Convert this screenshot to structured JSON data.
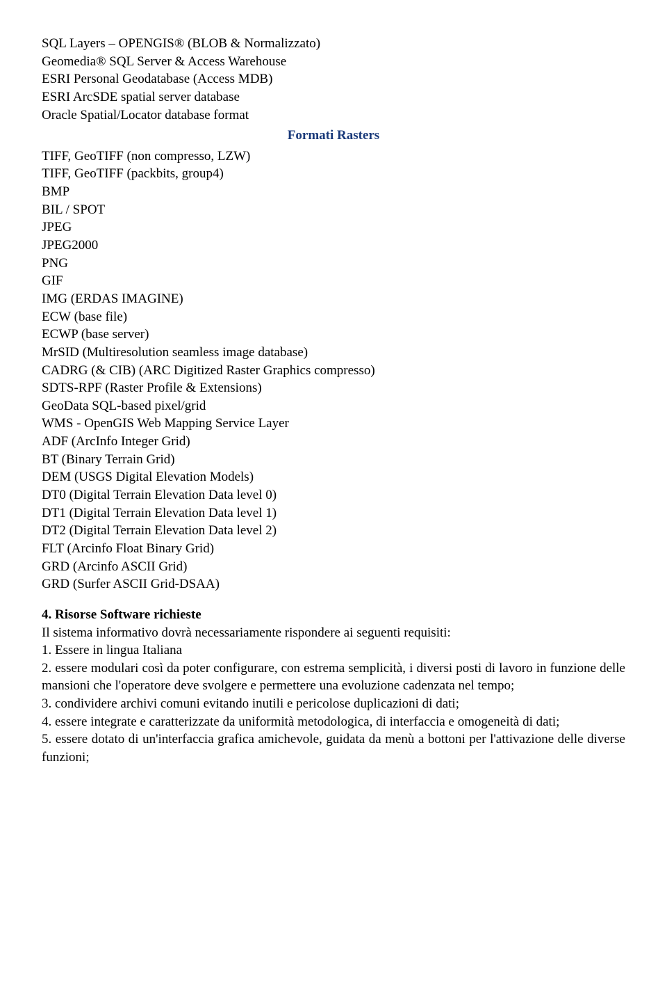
{
  "colors": {
    "heading": "#1a3a7a",
    "text": "#000000",
    "background": "#ffffff"
  },
  "typography": {
    "font_family": "Times New Roman",
    "body_fontsize_pt": 14,
    "heading_fontweight": "bold"
  },
  "section1_items": [
    "SQL Layers – OPENGIS® (BLOB & Normalizzato)",
    "Geomedia® SQL Server & Access Warehouse",
    "ESRI Personal Geodatabase (Access MDB)",
    "ESRI ArcSDE spatial server database",
    "Oracle Spatial/Locator database format"
  ],
  "heading_rasters": "Formati Rasters",
  "section2_items": [
    "TIFF, GeoTIFF (non compresso, LZW)",
    "TIFF, GeoTIFF (packbits, group4)",
    "BMP",
    "BIL / SPOT",
    "JPEG",
    "JPEG2000",
    "PNG",
    "GIF",
    "IMG (ERDAS IMAGINE)",
    "ECW (base file)",
    "ECWP (base server)",
    "MrSID (Multiresolution seamless image database)",
    "CADRG (& CIB) (ARC Digitized Raster Graphics compresso)",
    "SDTS-RPF (Raster Profile & Extensions)",
    "GeoData SQL-based pixel/grid",
    "WMS - OpenGIS Web Mapping Service Layer",
    "ADF (ArcInfo Integer Grid)",
    "BT (Binary Terrain Grid)",
    "DEM (USGS Digital Elevation Models)",
    "DT0 (Digital Terrain Elevation Data level 0)",
    "DT1 (Digital Terrain Elevation Data level 1)",
    "DT2 (Digital Terrain Elevation Data level 2)",
    "FLT (Arcinfo Float Binary Grid)",
    "GRD (Arcinfo ASCII Grid)",
    "GRD (Surfer ASCII Grid-DSAA)"
  ],
  "section4_title": "4. Risorse Software richieste",
  "section4_intro": "Il sistema informativo dovrà necessariamente rispondere ai seguenti requisiti:",
  "section4_items": [
    "1. Essere in lingua Italiana",
    "2. essere modulari così da poter configurare, con estrema semplicità, i diversi posti di lavoro in funzione delle mansioni che l'operatore deve svolgere e permettere una evoluzione cadenzata nel tempo;",
    "3. condividere archivi comuni evitando inutili e pericolose duplicazioni di dati;",
    "4. essere integrate e caratterizzate da uniformità metodologica, di interfaccia e omogeneità di dati;",
    "5. essere dotato di un'interfaccia grafica amichevole, guidata da menù a bottoni per l'attivazione delle diverse funzioni;"
  ]
}
